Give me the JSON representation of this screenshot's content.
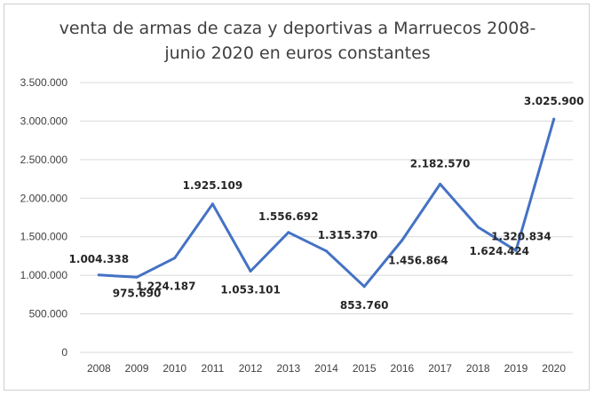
{
  "chart_data": {
    "type": "line",
    "title_line1": "venta de armas de caza y deportivas a Marruecos 2008-",
    "title_line2": "junio 2020 en euros constantes",
    "xlabel": "",
    "ylabel": "",
    "categories": [
      "2008",
      "2009",
      "2010",
      "2011",
      "2012",
      "2013",
      "2014",
      "2015",
      "2016",
      "2017",
      "2018",
      "2019",
      "2020"
    ],
    "values": [
      1004338,
      975690,
      1224187,
      1925109,
      1053101,
      1556692,
      1315370,
      853760,
      1456864,
      2182570,
      1624424,
      1320834,
      3025900
    ],
    "value_labels": [
      "1.004.338",
      "975.690",
      "1.224.187",
      "1.925.109",
      "1.053.101",
      "1.556.692",
      "1.315.370",
      "853.760",
      "1.456.864",
      "2.182.570",
      "1.624.424",
      "1.320.834",
      "3.025.900"
    ],
    "ylim": [
      0,
      3500000
    ],
    "yticks": [
      0,
      500000,
      1000000,
      1500000,
      2000000,
      2500000,
      3000000,
      3500000
    ],
    "ytick_labels": [
      "0",
      "500.000",
      "1.000.000",
      "1.500.000",
      "2.000.000",
      "2.500.000",
      "3.000.000",
      "3.500.000"
    ],
    "grid": true,
    "legend": "none",
    "line_color": "#4472C4",
    "grid_color": "#d9d9d9"
  }
}
